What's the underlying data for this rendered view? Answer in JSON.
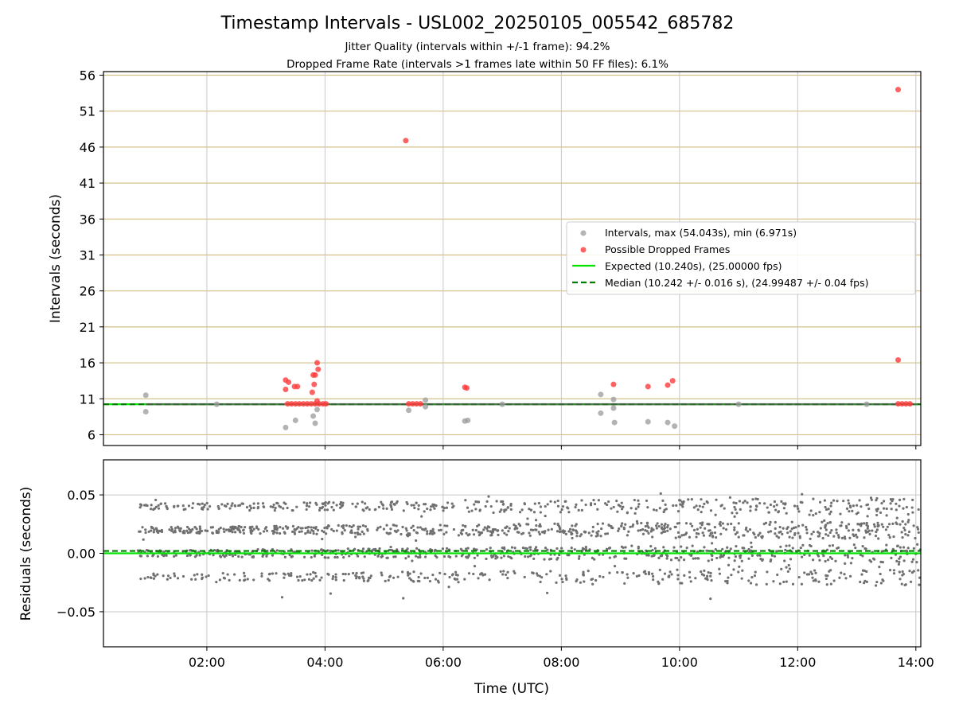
{
  "chart_data": [
    {
      "type": "scatter",
      "title": "Timestamp Intervals - USL002_20250105_005542_685782",
      "subtitle_lines": [
        "Jitter Quality (intervals within +/-1 frame): 94.2%",
        "Dropped Frame Rate (intervals >1 frames late within 50 FF files): 6.1%"
      ],
      "xlabel": "",
      "ylabel": "Intervals (seconds)",
      "xlim": [
        "00:15",
        "14:05"
      ],
      "ylim": [
        4.5,
        56.5
      ],
      "yticks": [
        6,
        11,
        16,
        21,
        26,
        31,
        36,
        41,
        46,
        51,
        56
      ],
      "xticks": [
        "02:00",
        "04:00",
        "06:00",
        "08:00",
        "10:00",
        "12:00",
        "14:00"
      ],
      "grid": "on",
      "legend_position": "right",
      "colors": {
        "intervals": "#9a9a9a",
        "dropped": "#ff3b3b",
        "expected": "#00e400",
        "median": "#007a00",
        "hgrid": "#d4c088",
        "vgrid": "#c8c8c8"
      },
      "series": [
        {
          "name": "Intervals, max (54.043s), min (6.971s)",
          "kind": "scatter",
          "points": [
            [
              "00:58",
              11.5
            ],
            [
              "00:58",
              9.2
            ],
            [
              "03:20",
              7.0
            ],
            [
              "03:30",
              8.0
            ],
            [
              "03:48",
              8.6
            ],
            [
              "03:50",
              7.6
            ],
            [
              "03:52",
              9.5
            ],
            [
              "05:25",
              9.4
            ],
            [
              "05:42",
              10.8
            ],
            [
              "05:42",
              9.9
            ],
            [
              "06:22",
              7.9
            ],
            [
              "06:25",
              8.0
            ],
            [
              "08:40",
              11.6
            ],
            [
              "08:40",
              9.0
            ],
            [
              "08:53",
              10.9
            ],
            [
              "08:53",
              9.7
            ],
            [
              "08:54",
              7.7
            ],
            [
              "09:28",
              7.8
            ],
            [
              "09:48",
              7.7
            ],
            [
              "09:55",
              7.2
            ],
            [
              "02:10",
              10.24
            ],
            [
              "07:00",
              10.24
            ],
            [
              "11:00",
              10.24
            ],
            [
              "13:10",
              10.24
            ]
          ]
        },
        {
          "name": "Possible Dropped Frames",
          "kind": "scatter",
          "points": [
            [
              "03:20",
              13.6
            ],
            [
              "03:20",
              12.3
            ],
            [
              "03:23",
              13.3
            ],
            [
              "03:29",
              12.7
            ],
            [
              "03:32",
              12.7
            ],
            [
              "03:47",
              11.9
            ],
            [
              "03:48",
              14.3
            ],
            [
              "03:49",
              13.0
            ],
            [
              "03:50",
              14.3
            ],
            [
              "03:52",
              16.0
            ],
            [
              "03:53",
              15.1
            ],
            [
              "03:52",
              10.7
            ],
            [
              "05:22",
              46.9
            ],
            [
              "06:22",
              12.6
            ],
            [
              "06:24",
              12.5
            ],
            [
              "08:53",
              13.0
            ],
            [
              "09:28",
              12.7
            ],
            [
              "09:48",
              12.9
            ],
            [
              "09:53",
              13.5
            ],
            [
              "13:42",
              54.0
            ],
            [
              "13:42",
              16.4
            ],
            [
              "03:22",
              10.3
            ],
            [
              "03:26",
              10.3
            ],
            [
              "03:30",
              10.3
            ],
            [
              "03:34",
              10.3
            ],
            [
              "03:38",
              10.3
            ],
            [
              "03:42",
              10.3
            ],
            [
              "03:46",
              10.3
            ],
            [
              "03:50",
              10.3
            ],
            [
              "03:54",
              10.3
            ],
            [
              "03:58",
              10.3
            ],
            [
              "04:01",
              10.3
            ],
            [
              "05:25",
              10.3
            ],
            [
              "05:29",
              10.3
            ],
            [
              "05:33",
              10.3
            ],
            [
              "05:37",
              10.3
            ],
            [
              "13:42",
              10.3
            ],
            [
              "13:46",
              10.3
            ],
            [
              "13:50",
              10.3
            ],
            [
              "13:54",
              10.3
            ]
          ]
        },
        {
          "name": "Expected (10.240s), (25.00000 fps)",
          "kind": "hline",
          "y": 10.24
        },
        {
          "name": "Median (10.242 +/- 0.016 s), (24.99487 +/- 0.04 fps)",
          "kind": "dashed-hline",
          "y": 10.242
        }
      ]
    },
    {
      "type": "scatter",
      "title": "",
      "xlabel": "Time (UTC)",
      "ylabel": "Residuals (seconds)",
      "xlim": [
        "00:15",
        "14:05"
      ],
      "ylim": [
        -0.08,
        0.08
      ],
      "yticks": [
        0.05,
        0.0,
        -0.05
      ],
      "ytick_labels": [
        "0.05",
        "0.00",
        "−0.05"
      ],
      "xticks": [
        "02:00",
        "04:00",
        "06:00",
        "08:00",
        "10:00",
        "12:00",
        "14:00"
      ],
      "grid": "on",
      "series": [
        {
          "name": "",
          "kind": "scatter-bands",
          "x_range": [
            "00:50",
            "14:05"
          ],
          "bands": [
            0.04,
            0.02,
            0.0,
            -0.02
          ],
          "band_spread": 0.0025,
          "outlier_range": [
            -0.04,
            0.05
          ],
          "point_count": 2000
        },
        {
          "name": "",
          "kind": "hline",
          "y": 0.0
        },
        {
          "name": "",
          "kind": "dashed-hline",
          "y": 0.002
        }
      ]
    }
  ]
}
